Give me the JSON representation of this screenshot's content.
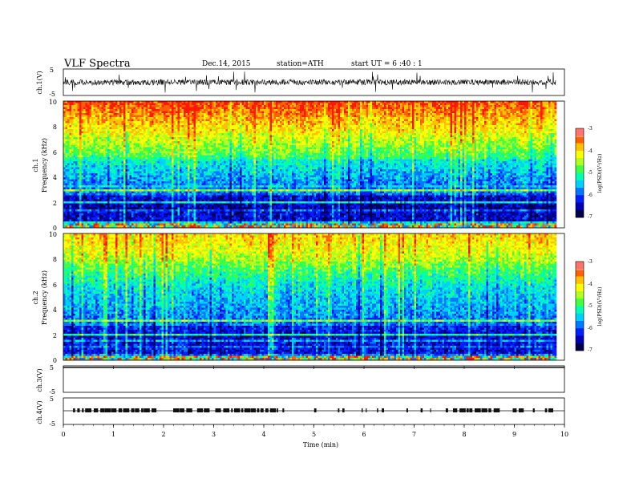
{
  "header": {
    "title": "VLF  Spectra",
    "date": "Dec.14, 2015",
    "station": "station=ATH",
    "start": "start  UT =   6 :40 : 1"
  },
  "colors": {
    "palette": [
      "#00004a",
      "#0000b4",
      "#0020ff",
      "#0078ff",
      "#00d0ff",
      "#00ffb0",
      "#40ff40",
      "#b0ff20",
      "#ffff00",
      "#ffc000",
      "#ff6000",
      "#ff1800"
    ],
    "trace": "#111111",
    "frame": "#000000"
  },
  "chart_data": [
    {
      "type": "line",
      "panel": "ch1",
      "ylabel": "ch.1(V)",
      "yticks": [
        "5",
        "-5"
      ],
      "ylim": [
        -5,
        5
      ],
      "description_values": {
        "baseline_V": 0,
        "noise_range_V": [
          -1.5,
          1.5
        ],
        "spike_min_V": -5
      }
    },
    {
      "type": "heatmap",
      "panel": "ch1-spectrogram",
      "ylabel": "Frequency (kHz)",
      "channel_label": "ch.1",
      "yticks": [
        "10",
        "8",
        "6",
        "4",
        "2",
        "0"
      ],
      "ylim": [
        0,
        10
      ],
      "colorbar": {
        "label": "log(PSD)(V²/Hz)",
        "ticks": [
          "-3",
          "-4",
          "-5",
          "-6",
          "-7"
        ],
        "range": [
          -7,
          -3
        ]
      }
    },
    {
      "type": "heatmap",
      "panel": "ch2-spectrogram",
      "ylabel": "Frequency (kHz)",
      "channel_label": "ch.2",
      "yticks": [
        "10",
        "8",
        "6",
        "4",
        "2",
        "0"
      ],
      "ylim": [
        0,
        10
      ],
      "colorbar": {
        "label": "log(PSD)(V²/Hz)",
        "ticks": [
          "-3",
          "-4",
          "-5",
          "-6",
          "-7"
        ],
        "range": [
          -7,
          -3
        ]
      }
    },
    {
      "type": "line",
      "panel": "ch3",
      "ylabel": "ch.3(V)",
      "yticks": [
        "5",
        "-5"
      ],
      "ylim": [
        -5,
        5
      ],
      "description_values": {
        "baseline_V": 5
      }
    },
    {
      "type": "line",
      "panel": "ch4",
      "ylabel": "ch.4(V)",
      "yticks": [
        "5",
        "-5"
      ],
      "ylim": [
        -5,
        5
      ],
      "description_values": {
        "baseline_V": 0
      }
    }
  ],
  "xaxis": {
    "label": "Time  (min)",
    "xlim": [
      0,
      10
    ],
    "ticks": [
      "0",
      "1",
      "2",
      "3",
      "4",
      "5",
      "6",
      "7",
      "8",
      "9",
      "10"
    ]
  }
}
